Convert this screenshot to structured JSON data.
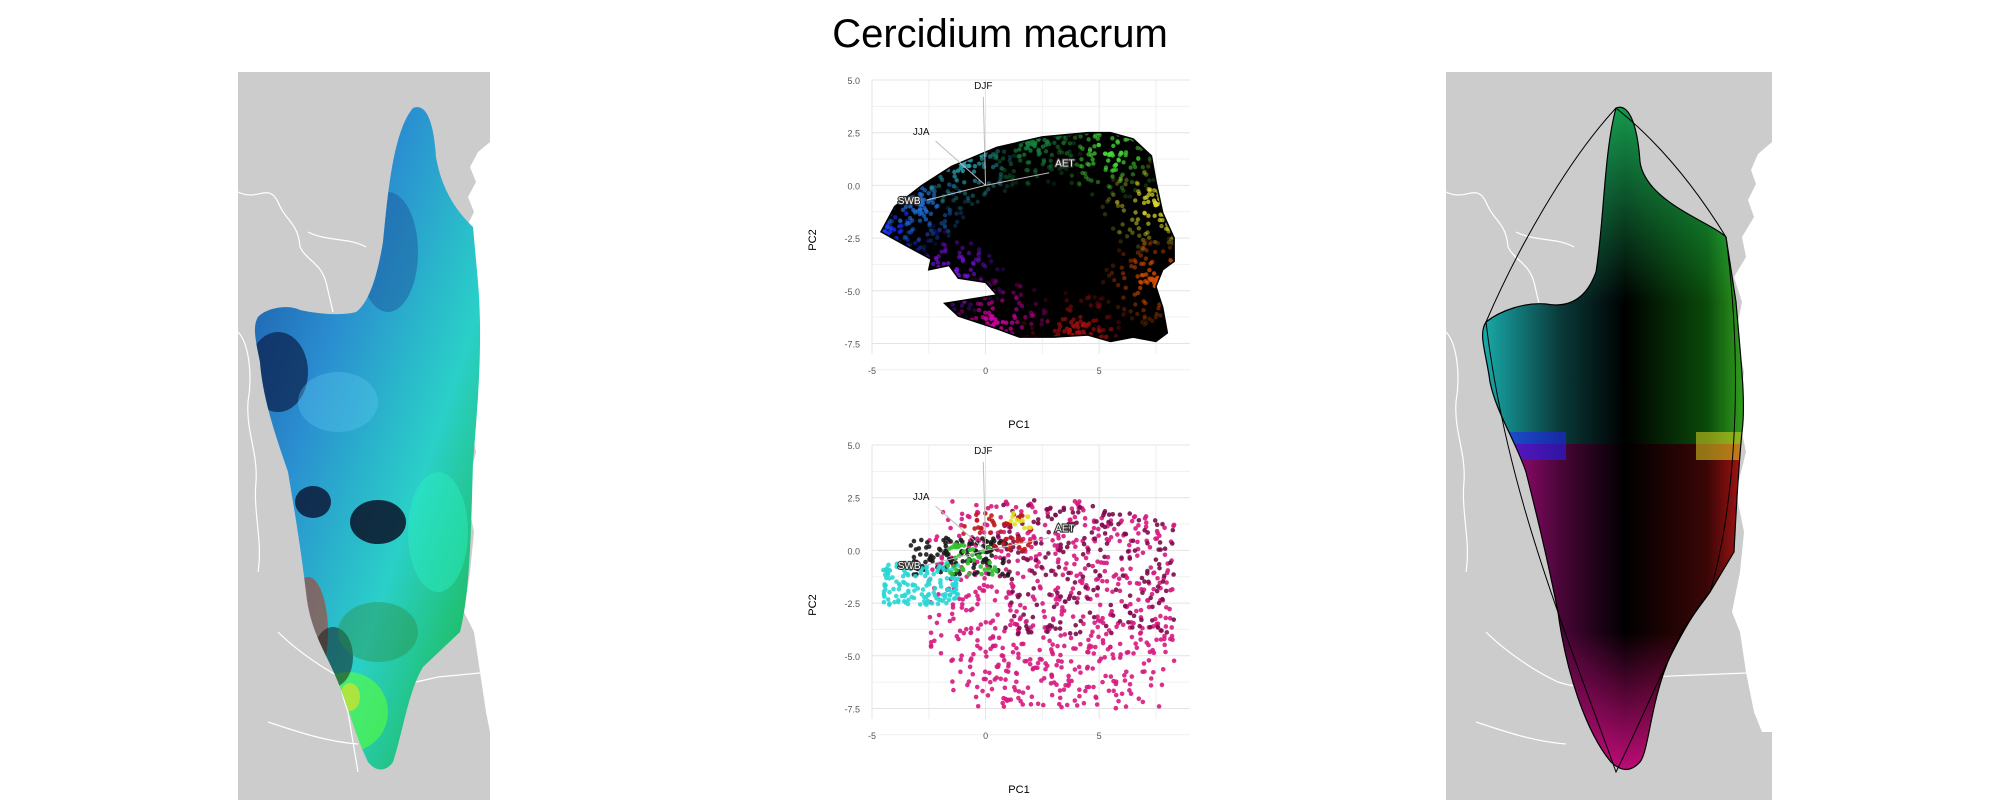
{
  "figure": {
    "title": "Cercidium macrum"
  },
  "chart_data": [
    {
      "type": "scatter",
      "panel": "PCA climate space with modelled range (top)",
      "xlabel": "PC1",
      "ylabel": "PC2",
      "xlim": [
        -5,
        9
      ],
      "ylim": [
        -8,
        5
      ],
      "x_ticks": [
        "-5",
        "0",
        "5"
      ],
      "y_ticks": [
        "5.0",
        "2.5",
        "0.0",
        "-2.5",
        "-5.0",
        "-7.5"
      ],
      "grid": true,
      "loadings": [
        {
          "label": "DJF",
          "x": -0.1,
          "y": 4.2
        },
        {
          "label": "JJA",
          "x": -2.2,
          "y": 2.1
        },
        {
          "label": "AET",
          "x": 2.8,
          "y": 0.6
        },
        {
          "label": "SWB",
          "x": -2.6,
          "y": -0.7
        }
      ],
      "hull_outline": [
        [
          -4.6,
          -2.2
        ],
        [
          -4.0,
          -1.0
        ],
        [
          -2.8,
          0.0
        ],
        [
          -1.5,
          0.9
        ],
        [
          0.5,
          1.8
        ],
        [
          2.5,
          2.3
        ],
        [
          4.5,
          2.5
        ],
        [
          5.5,
          2.5
        ],
        [
          6.5,
          2.2
        ],
        [
          7.3,
          1.4
        ],
        [
          7.5,
          0.2
        ],
        [
          7.8,
          -1.3
        ],
        [
          8.3,
          -2.5
        ],
        [
          8.3,
          -3.6
        ],
        [
          7.8,
          -4.0
        ],
        [
          7.5,
          -4.8
        ],
        [
          7.8,
          -5.8
        ],
        [
          8.0,
          -7.0
        ],
        [
          7.5,
          -7.4
        ],
        [
          6.5,
          -7.2
        ],
        [
          5.5,
          -7.4
        ],
        [
          4.5,
          -7.1
        ],
        [
          3.0,
          -7.2
        ],
        [
          1.5,
          -7.2
        ],
        [
          0.5,
          -6.8
        ],
        [
          -1.2,
          -6.2
        ],
        [
          -1.8,
          -5.6
        ],
        [
          0.5,
          -5.2
        ],
        [
          0.0,
          -4.6
        ],
        [
          -1.2,
          -4.4
        ],
        [
          -1.6,
          -3.8
        ],
        [
          -2.5,
          -4.0
        ],
        [
          -2.4,
          -3.5
        ],
        [
          -3.6,
          -2.8
        ],
        [
          -4.6,
          -2.2
        ]
      ],
      "color_anchors": [
        {
          "x": -4.5,
          "y": -2.2,
          "color": "#1a2bff"
        },
        {
          "x": -3.0,
          "y": -0.8,
          "color": "#1f6fd6"
        },
        {
          "x": -1.0,
          "y": 1.0,
          "color": "#2aa4b0"
        },
        {
          "x": 2.0,
          "y": 2.0,
          "color": "#15803a"
        },
        {
          "x": 5.5,
          "y": 1.5,
          "color": "#45d63a"
        },
        {
          "x": 7.5,
          "y": -1.0,
          "color": "#d6d62a"
        },
        {
          "x": 7.5,
          "y": -4.5,
          "color": "#d64d00"
        },
        {
          "x": 4.0,
          "y": -7.0,
          "color": "#a01010"
        },
        {
          "x": 0.5,
          "y": -6.5,
          "color": "#d600a8"
        },
        {
          "x": -1.5,
          "y": -4.2,
          "color": "#7a10e0"
        },
        {
          "x": 2.5,
          "y": -2.5,
          "color": "#000000"
        }
      ]
    },
    {
      "type": "scatter",
      "panel": "PCA climate space with observed cells (bottom)",
      "xlabel": "PC1",
      "ylabel": "PC2",
      "xlim": [
        -5,
        9
      ],
      "ylim": [
        -8,
        5
      ],
      "x_ticks": [
        "-5",
        "0",
        "5"
      ],
      "y_ticks": [
        "5.0",
        "2.5",
        "0.0",
        "-2.5",
        "-5.0",
        "-7.5"
      ],
      "grid": true,
      "loadings": [
        {
          "label": "DJF",
          "x": -0.1,
          "y": 4.2
        },
        {
          "label": "JJA",
          "x": -2.2,
          "y": 2.1
        },
        {
          "label": "AET",
          "x": 2.8,
          "y": 0.6
        },
        {
          "label": "SWB",
          "x": -2.6,
          "y": -0.7
        }
      ],
      "point_groups": [
        {
          "color": "#d6197f",
          "x_range": [
            -2.5,
            8.3
          ],
          "y_range": [
            -7.5,
            2.4
          ],
          "n": 700
        },
        {
          "color": "#7a0b4a",
          "x_range": [
            0.5,
            8.3
          ],
          "y_range": [
            -4.0,
            2.4
          ],
          "n": 220
        },
        {
          "color": "#1a1a1a",
          "x_range": [
            -3.5,
            1.0
          ],
          "y_range": [
            -1.2,
            0.6
          ],
          "n": 120
        },
        {
          "color": "#2bd6d6",
          "x_range": [
            -4.6,
            -1.2
          ],
          "y_range": [
            -2.6,
            -0.6
          ],
          "n": 140
        },
        {
          "color": "#30c030",
          "x_range": [
            -1.8,
            0.5
          ],
          "y_range": [
            -1.2,
            0.3
          ],
          "n": 40
        },
        {
          "color": "#c01818",
          "x_range": [
            -1.0,
            2.0
          ],
          "y_range": [
            0.0,
            1.8
          ],
          "n": 40
        },
        {
          "color": "#e0e020",
          "x_range": [
            1.0,
            2.0
          ],
          "y_range": [
            1.0,
            1.8
          ],
          "n": 12
        }
      ]
    }
  ],
  "maps": {
    "left": {
      "panel": "Observed climate colouring over the range"
    },
    "right": {
      "panel": "Modelled climate colouring with range boundary"
    }
  }
}
